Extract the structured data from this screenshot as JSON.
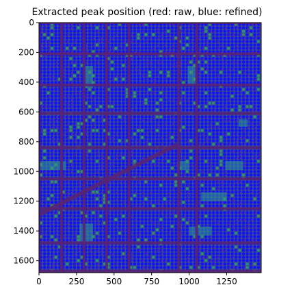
{
  "chart_data": {
    "type": "heatmap",
    "title": "Extracted peak position (red: raw, blue: refined)",
    "xlabel": "",
    "ylabel": "",
    "xlim": [
      0,
      1480
    ],
    "ylim": [
      1680,
      0
    ],
    "xticks": [
      0,
      250,
      500,
      750,
      1000,
      1250
    ],
    "yticks": [
      0,
      200,
      400,
      600,
      800,
      1000,
      1200,
      1400,
      1600
    ],
    "grid": false,
    "image": {
      "colormap": "viridis",
      "background_color": "#3b4b8a",
      "gap_color": "#5a2470",
      "vertical_gaps_x": [
        0,
        150,
        300,
        450,
        600,
        930,
        1050
      ],
      "horizontal_gaps_y": [
        0,
        210,
        420,
        610,
        840,
        1050,
        1250,
        1480,
        1670
      ],
      "diagonal_band": {
        "from": [
          0,
          1290
        ],
        "to": [
          920,
          820
        ]
      }
    },
    "series": [
      {
        "name": "raw",
        "color": "#ff2020",
        "marker": "point"
      },
      {
        "name": "refined",
        "color": "#1010ff",
        "marker": "point"
      }
    ],
    "grid_spacing_x": 25,
    "grid_spacing_y": 23
  }
}
